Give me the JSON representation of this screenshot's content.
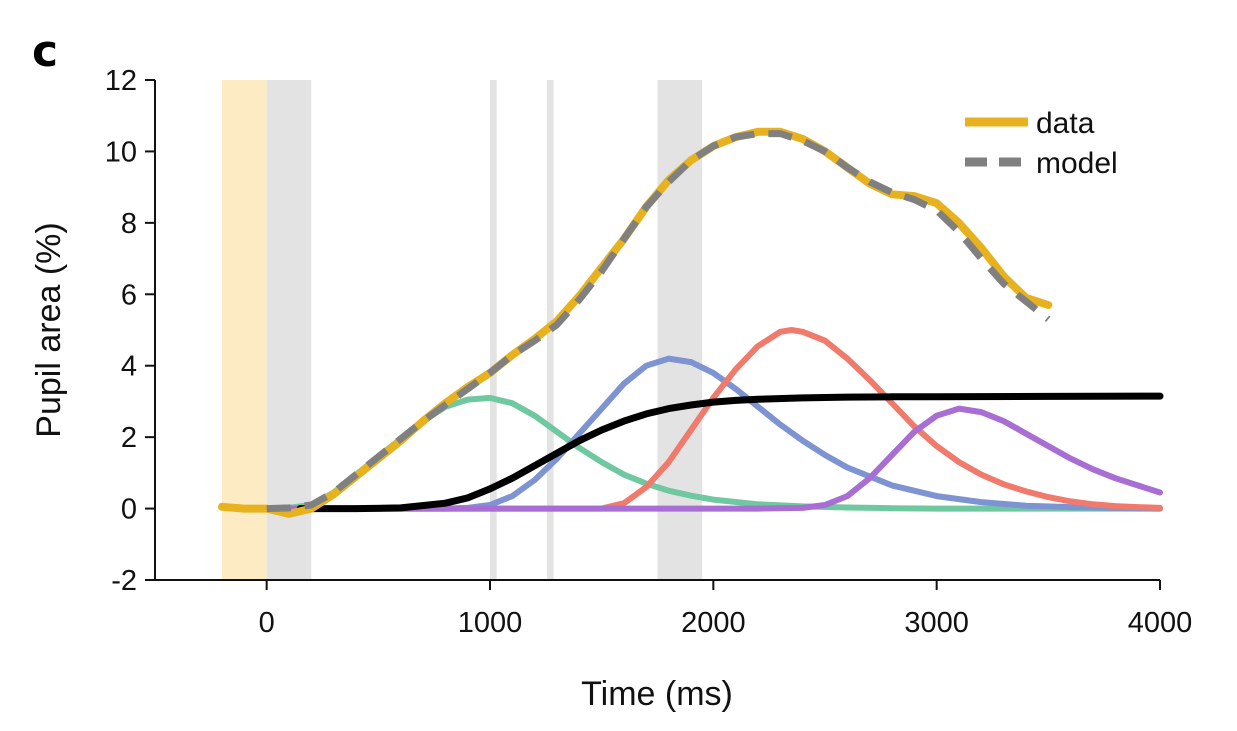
{
  "panel_label": "c",
  "chart_data": {
    "type": "line",
    "xlabel": "Time (ms)",
    "ylabel": "Pupil area (%)",
    "xlim": [
      -500,
      4000
    ],
    "ylim": [
      -2,
      12
    ],
    "x_ticks": [
      0,
      1000,
      2000,
      3000,
      4000
    ],
    "x_tick_labels": [
      "0",
      "1000",
      "2000",
      "3000",
      "4000"
    ],
    "y_ticks": [
      -2,
      0,
      2,
      4,
      6,
      8,
      10,
      12
    ],
    "y_tick_labels": [
      "-2",
      "0",
      "2",
      "4",
      "6",
      "8",
      "10",
      "12"
    ],
    "grid": false,
    "legend": {
      "position": "top-right",
      "entries": [
        {
          "label": "data",
          "color": "#E8B21F",
          "style": "solid"
        },
        {
          "label": "model",
          "color": "#808080",
          "style": "dashed"
        }
      ]
    },
    "shaded_regions": [
      {
        "x0": -200,
        "x1": 0,
        "color": "#FDEBC4"
      },
      {
        "x0": 0,
        "x1": 200,
        "color": "#E3E3E3"
      },
      {
        "x0": 1000,
        "x1": 1030,
        "color": "#E3E3E3"
      },
      {
        "x0": 1255,
        "x1": 1285,
        "color": "#E3E3E3"
      },
      {
        "x0": 1750,
        "x1": 1950,
        "color": "#E3E3E3"
      }
    ],
    "series": [
      {
        "color": "#6FC8A0",
        "width": 6,
        "style": "solid",
        "x": [
          0,
          100,
          200,
          300,
          400,
          500,
          600,
          700,
          800,
          900,
          1000,
          1100,
          1200,
          1300,
          1400,
          1500,
          1600,
          1700,
          1800,
          1900,
          2000,
          2200,
          2400,
          2600,
          2800,
          3000,
          3200,
          3400,
          3600,
          3800,
          4000
        ],
        "y": [
          0,
          0.02,
          0.1,
          0.45,
          0.95,
          1.45,
          1.95,
          2.45,
          2.85,
          3.05,
          3.1,
          2.95,
          2.6,
          2.15,
          1.7,
          1.3,
          0.95,
          0.7,
          0.5,
          0.36,
          0.25,
          0.12,
          0.06,
          0.03,
          0.01,
          0,
          0,
          0,
          0,
          0,
          0
        ]
      },
      {
        "color": "#7D93D2",
        "width": 6,
        "style": "solid",
        "x": [
          0,
          200,
          400,
          600,
          800,
          900,
          1000,
          1100,
          1200,
          1300,
          1400,
          1500,
          1600,
          1700,
          1800,
          1900,
          2000,
          2100,
          2200,
          2300,
          2400,
          2500,
          2600,
          2800,
          3000,
          3200,
          3400,
          3600,
          3800,
          4000
        ],
        "y": [
          0,
          0,
          0,
          0,
          0,
          0.02,
          0.1,
          0.35,
          0.8,
          1.4,
          2.1,
          2.8,
          3.5,
          4.0,
          4.2,
          4.1,
          3.8,
          3.35,
          2.85,
          2.35,
          1.9,
          1.5,
          1.15,
          0.65,
          0.35,
          0.18,
          0.08,
          0.04,
          0.02,
          0
        ]
      },
      {
        "color": "#F07A6B",
        "width": 6,
        "style": "solid",
        "x": [
          0,
          400,
          800,
          1200,
          1400,
          1500,
          1600,
          1700,
          1800,
          1900,
          2000,
          2100,
          2200,
          2300,
          2350,
          2400,
          2500,
          2600,
          2700,
          2800,
          2900,
          3000,
          3100,
          3200,
          3300,
          3400,
          3500,
          3600,
          3700,
          3800,
          3900,
          4000
        ],
        "y": [
          0,
          0,
          0,
          0,
          0,
          0,
          0.15,
          0.6,
          1.3,
          2.2,
          3.1,
          3.9,
          4.55,
          4.95,
          5.0,
          4.95,
          4.7,
          4.2,
          3.6,
          2.95,
          2.3,
          1.75,
          1.3,
          0.95,
          0.68,
          0.48,
          0.32,
          0.2,
          0.12,
          0.07,
          0.04,
          0.02
        ]
      },
      {
        "color": "#A86ED3",
        "width": 6,
        "style": "solid",
        "x": [
          0,
          800,
          1600,
          2200,
          2400,
          2500,
          2600,
          2700,
          2800,
          2900,
          3000,
          3100,
          3200,
          3300,
          3400,
          3500,
          3600,
          3700,
          3800,
          3900,
          4000
        ],
        "y": [
          0,
          0,
          0,
          0,
          0.02,
          0.1,
          0.35,
          0.85,
          1.5,
          2.15,
          2.6,
          2.8,
          2.7,
          2.45,
          2.1,
          1.75,
          1.4,
          1.1,
          0.85,
          0.65,
          0.45
        ]
      },
      {
        "color": "#000000",
        "width": 7,
        "style": "solid",
        "x": [
          150,
          400,
          600,
          800,
          900,
          1000,
          1100,
          1200,
          1300,
          1400,
          1500,
          1600,
          1700,
          1800,
          1900,
          2000,
          2100,
          2200,
          2400,
          2600,
          2800,
          3000,
          3500,
          4000
        ],
        "y": [
          0,
          0,
          0.02,
          0.15,
          0.3,
          0.55,
          0.85,
          1.2,
          1.55,
          1.9,
          2.2,
          2.45,
          2.65,
          2.8,
          2.9,
          2.98,
          3.03,
          3.06,
          3.1,
          3.12,
          3.13,
          3.13,
          3.14,
          3.15
        ]
      },
      {
        "name": "data",
        "color": "#E8B21F",
        "width": 8,
        "style": "solid",
        "x": [
          -200,
          -100,
          0,
          100,
          200,
          300,
          400,
          500,
          600,
          700,
          800,
          900,
          1000,
          1100,
          1200,
          1300,
          1400,
          1500,
          1600,
          1700,
          1800,
          1900,
          2000,
          2100,
          2200,
          2300,
          2400,
          2500,
          2600,
          2700,
          2800,
          2900,
          3000,
          3100,
          3200,
          3300,
          3400,
          3500
        ],
        "y": [
          0.05,
          0,
          0,
          -0.15,
          0,
          0.4,
          0.9,
          1.4,
          1.9,
          2.45,
          2.95,
          3.4,
          3.8,
          4.3,
          4.75,
          5.25,
          5.95,
          6.75,
          7.55,
          8.45,
          9.2,
          9.75,
          10.15,
          10.4,
          10.55,
          10.55,
          10.35,
          10.0,
          9.55,
          9.1,
          8.8,
          8.75,
          8.55,
          8.0,
          7.3,
          6.5,
          5.9,
          5.7
        ]
      },
      {
        "name": "model",
        "color": "#808080",
        "width": 7,
        "style": "dashed",
        "x": [
          0,
          100,
          200,
          300,
          400,
          500,
          600,
          700,
          800,
          900,
          1000,
          1100,
          1200,
          1300,
          1400,
          1500,
          1600,
          1700,
          1800,
          1900,
          2000,
          2100,
          2200,
          2300,
          2400,
          2500,
          2600,
          2700,
          2800,
          2900,
          3000,
          3100,
          3200,
          3300,
          3400,
          3500
        ],
        "y": [
          0,
          0.02,
          0.1,
          0.45,
          0.95,
          1.45,
          1.95,
          2.45,
          2.9,
          3.35,
          3.8,
          4.3,
          4.7,
          5.15,
          5.85,
          6.65,
          7.55,
          8.45,
          9.15,
          9.75,
          10.15,
          10.4,
          10.5,
          10.5,
          10.3,
          10.0,
          9.55,
          9.15,
          8.85,
          8.65,
          8.35,
          7.75,
          7.0,
          6.3,
          5.8,
          5.3
        ]
      }
    ]
  }
}
